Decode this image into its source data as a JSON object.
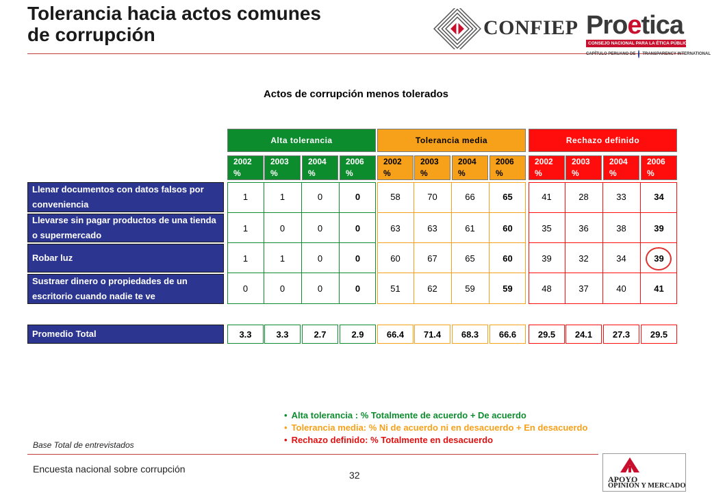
{
  "title": {
    "line1": "Tolerancia hacia actos comunes",
    "line2": "de corrupción"
  },
  "logos": {
    "confiep": "CONFIEP",
    "proetica_pre": "Pro",
    "proetica_e": "e",
    "proetica_post": "tica",
    "proetica_band": "CONSEJO NACIONAL PARA LA ÉTICA PÚBLICA",
    "proetica_chapter": "CAPÍTULO PERUANO DE",
    "transparency": "TRANSPARENCY INTERNATIONAL",
    "apoyo_1": "APOYO",
    "apoyo_2": "OPINIÓN Y MERCADO"
  },
  "subtitle": "Actos de corrupción menos tolerados",
  "groups": [
    {
      "label": "Alta tolerancia",
      "color": "#0d8c2e"
    },
    {
      "label": "Tolerancia media",
      "color": "#f7a11b"
    },
    {
      "label": "Rechazo definido",
      "color": "#ff0d0d"
    }
  ],
  "years": [
    "2002",
    "2003",
    "2004",
    "2006"
  ],
  "pct": "%",
  "rows": [
    {
      "label": "Llenar documentos con datos falsos por conveniencia",
      "values": [
        [
          "1",
          "1",
          "0",
          "0"
        ],
        [
          "58",
          "70",
          "66",
          "65"
        ],
        [
          "41",
          "28",
          "33",
          "34"
        ]
      ]
    },
    {
      "label": "Llevarse sin pagar productos de una tienda o supermercado",
      "values": [
        [
          "1",
          "0",
          "0",
          "0"
        ],
        [
          "63",
          "63",
          "61",
          "60"
        ],
        [
          "35",
          "36",
          "38",
          "39"
        ]
      ]
    },
    {
      "label": "Robar luz",
      "values": [
        [
          "1",
          "1",
          "0",
          "0"
        ],
        [
          "60",
          "67",
          "65",
          "60"
        ],
        [
          "39",
          "32",
          "34",
          "39"
        ]
      ]
    },
    {
      "label": "Sustraer dinero o propiedades de un escritorio cuando nadie te ve",
      "values": [
        [
          "0",
          "0",
          "0",
          "0"
        ],
        [
          "51",
          "62",
          "59",
          "59"
        ],
        [
          "48",
          "37",
          "40",
          "41"
        ]
      ]
    }
  ],
  "average": {
    "label": "Promedio Total",
    "values": [
      [
        "3.3",
        "3.3",
        "2.7",
        "2.9"
      ],
      [
        "66.4",
        "71.4",
        "68.3",
        "66.6"
      ],
      [
        "29.5",
        "24.1",
        "27.3",
        "29.5"
      ]
    ]
  },
  "legend": [
    {
      "text": "Alta tolerancia : % Totalmente de acuerdo + De acuerdo",
      "color": "#0d8c2e"
    },
    {
      "text": "Tolerancia media: % Ni de acuerdo ni en desacuerdo + En desacuerdo",
      "color": "#f7a11b"
    },
    {
      "text": "Rechazo definido: % Totalmente en desacuerdo",
      "color": "#e01010"
    }
  ],
  "base": "Base Total de entrevistados",
  "footer": "Encuesta nacional sobre corrupción",
  "page": "32"
}
